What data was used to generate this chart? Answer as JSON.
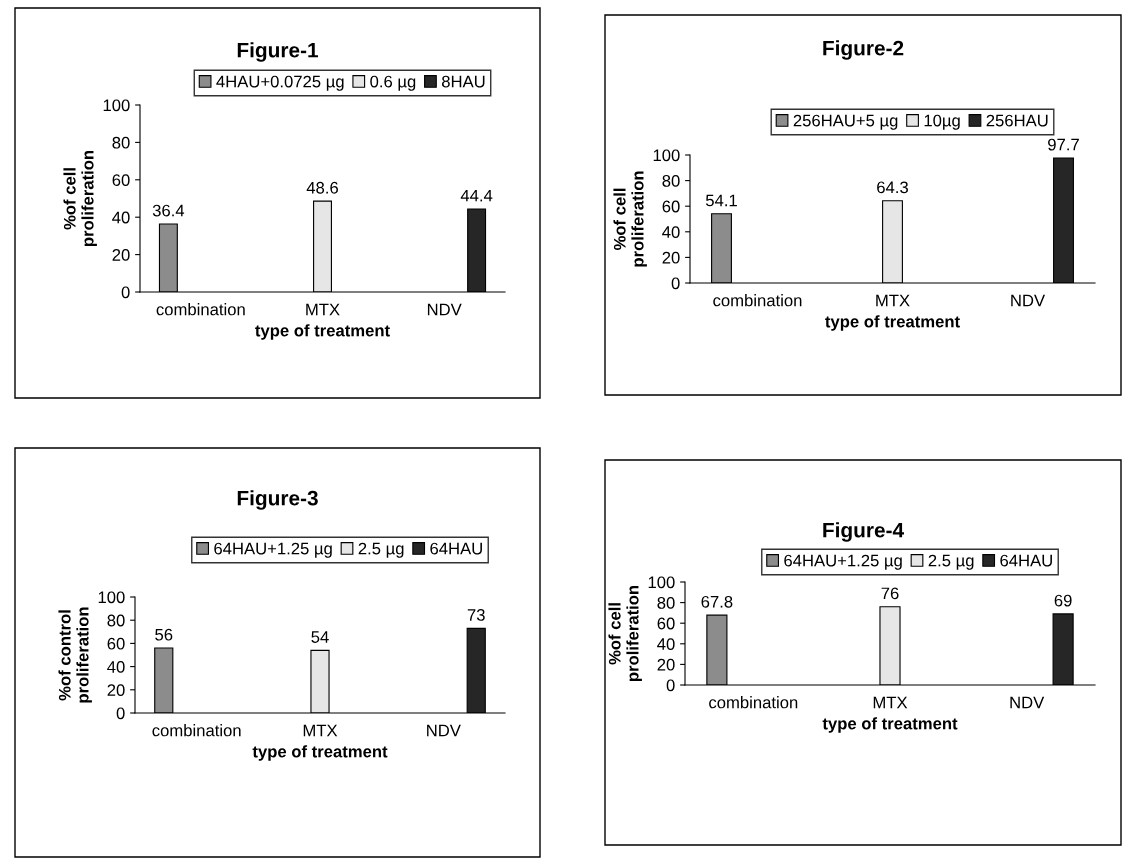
{
  "chart_data": [
    {
      "type": "bar",
      "title": "Figure-1",
      "xlabel": "type of treatment",
      "ylabel": "%of cell\nproliferation",
      "categories": [
        "combination",
        "MTX",
        "NDV"
      ],
      "series": [
        {
          "name": "4HAU+0.0725 µg",
          "color": "#8c8c8c",
          "values": [
            36.4,
            null,
            null
          ]
        },
        {
          "name": "0.6 µg",
          "color": "#e6e6e6",
          "values": [
            null,
            48.6,
            null
          ]
        },
        {
          "name": "8HAU",
          "color": "#262626",
          "values": [
            null,
            null,
            44.4
          ]
        }
      ],
      "ylim": [
        0,
        100
      ],
      "yticks": [
        0,
        20,
        40,
        60,
        80,
        100
      ],
      "data_labels": true,
      "legend": "top",
      "grid": false
    },
    {
      "type": "bar",
      "title": "Figure-2",
      "xlabel": "type of treatment",
      "ylabel": "%of cell\nproliferation",
      "categories": [
        "combination",
        "MTX",
        "NDV"
      ],
      "series": [
        {
          "name": "256HAU+5 µg",
          "color": "#8c8c8c",
          "values": [
            54.1,
            null,
            null
          ]
        },
        {
          "name": "10µg",
          "color": "#e6e6e6",
          "values": [
            null,
            64.3,
            null
          ]
        },
        {
          "name": "256HAU",
          "color": "#262626",
          "values": [
            null,
            null,
            97.7
          ]
        }
      ],
      "ylim": [
        0,
        100
      ],
      "yticks": [
        0,
        20,
        40,
        60,
        80,
        100
      ],
      "data_labels": true,
      "legend": "top",
      "grid": false
    },
    {
      "type": "bar",
      "title": "Figure-3",
      "xlabel": "type of treatment",
      "ylabel": "%of control\nproliferation",
      "categories": [
        "combination",
        "MTX",
        "NDV"
      ],
      "series": [
        {
          "name": "64HAU+1.25 µg",
          "color": "#8c8c8c",
          "values": [
            56,
            null,
            null
          ]
        },
        {
          "name": "2.5 µg",
          "color": "#e6e6e6",
          "values": [
            null,
            54,
            null
          ]
        },
        {
          "name": "64HAU",
          "color": "#262626",
          "values": [
            null,
            null,
            73
          ]
        }
      ],
      "ylim": [
        0,
        100
      ],
      "yticks": [
        0,
        20,
        40,
        60,
        80,
        100
      ],
      "data_labels": true,
      "legend": "top",
      "grid": false
    },
    {
      "type": "bar",
      "title": "Figure-4",
      "xlabel": "type of treatment",
      "ylabel": "%of cell\nproliferation",
      "categories": [
        "combination",
        "MTX",
        "NDV"
      ],
      "series": [
        {
          "name": "64HAU+1.25 µg",
          "color": "#8c8c8c",
          "values": [
            67.8,
            null,
            null
          ]
        },
        {
          "name": "2.5 µg",
          "color": "#e6e6e6",
          "values": [
            null,
            76,
            null
          ]
        },
        {
          "name": "64HAU",
          "color": "#262626",
          "values": [
            null,
            null,
            69
          ]
        }
      ],
      "ylim": [
        0,
        100
      ],
      "yticks": [
        0,
        20,
        40,
        60,
        80,
        100
      ],
      "data_labels": true,
      "legend": "top",
      "grid": false
    }
  ]
}
